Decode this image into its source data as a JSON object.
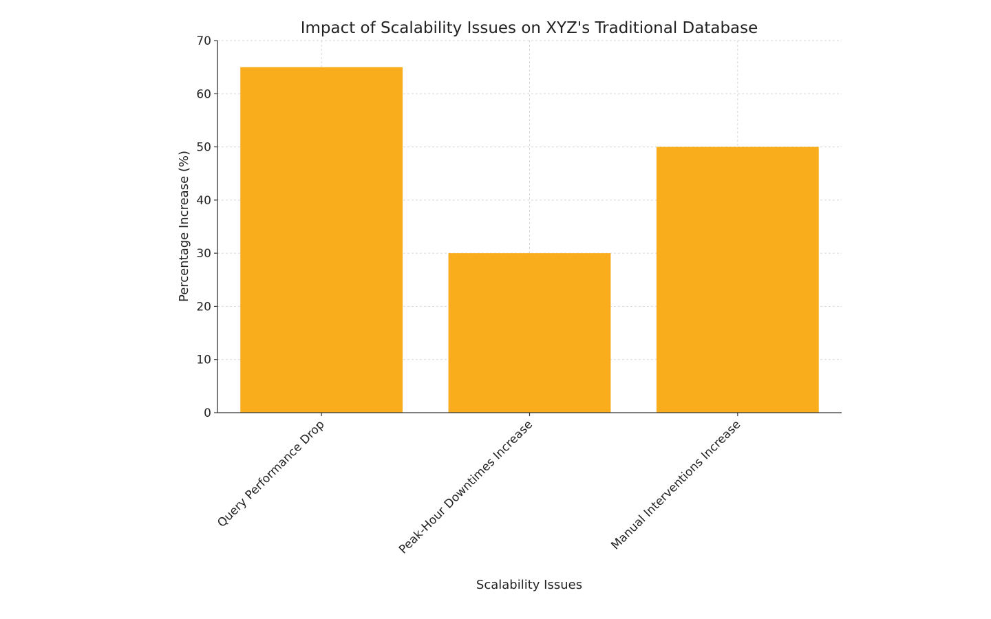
{
  "chart_data": {
    "type": "bar",
    "title": "Impact of Scalability Issues on XYZ's Traditional Database",
    "xlabel": "Scalability Issues",
    "ylabel": "Percentage Increase (%)",
    "categories": [
      "Query Performance Drop",
      "Peak-Hour Downtimes Increase",
      "Manual Interventions Increase"
    ],
    "values": [
      65,
      30,
      50
    ],
    "ylim": [
      0,
      70
    ],
    "yticks": [
      0,
      10,
      20,
      30,
      40,
      50,
      60,
      70
    ],
    "grid": true,
    "bar_color": "#f9ac1c"
  }
}
